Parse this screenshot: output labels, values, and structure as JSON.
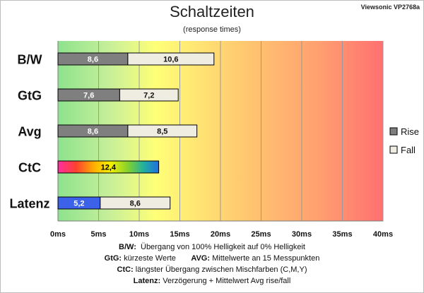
{
  "brand": "Viewsonic VP2768a",
  "legend": [
    {
      "label": "Rise",
      "color": "#7f7f7f"
    },
    {
      "label": "Fall",
      "color": "#efece1"
    }
  ],
  "notes": [
    {
      "key": "B/W:",
      "text": "Übergang von 100% Helligkeit auf 0% Helligkeit"
    },
    {
      "key": "GtG:",
      "text": "kürzeste Werte",
      "key2": "AVG:",
      "text2": "Mittelwerte an 15 Messpunkten"
    },
    {
      "key": "CtC:",
      "text": "längster Übergang zwischen Mischfarben (C,M,Y)"
    },
    {
      "key": "Latenz:",
      "text": "Verzögerung + Mittelwert Avg rise/fall"
    }
  ],
  "chart_data": {
    "type": "bar",
    "orientation": "horizontal",
    "stacked": true,
    "title": "Schaltzeiten",
    "subtitle": "(response times)",
    "unit": "ms",
    "xlim": [
      0,
      40
    ],
    "xticks": [
      "0ms",
      "5ms",
      "10ms",
      "15ms",
      "20ms",
      "25ms",
      "30ms",
      "35ms",
      "40ms"
    ],
    "grid": true,
    "legend_position": "right",
    "background": "gradient green-yellow-red",
    "categories": [
      "B/W",
      "GtG",
      "Avg",
      "CtC",
      "Latenz"
    ],
    "series": [
      {
        "name": "Rise",
        "values": [
          8.6,
          7.6,
          8.6,
          12.4,
          5.2
        ],
        "labels": [
          "8,6",
          "7,6",
          "8,6",
          "12,4",
          "5,2"
        ]
      },
      {
        "name": "Fall",
        "values": [
          10.6,
          7.2,
          8.5,
          0,
          8.6
        ],
        "labels": [
          "10,6",
          "7,2",
          "8,5",
          "",
          "8,6"
        ]
      }
    ],
    "bar_styles": {
      "Rise": "#7f7f7f",
      "Fall": "#efece1",
      "CtC": "rainbow",
      "Latenz": "#3b62e8"
    }
  }
}
